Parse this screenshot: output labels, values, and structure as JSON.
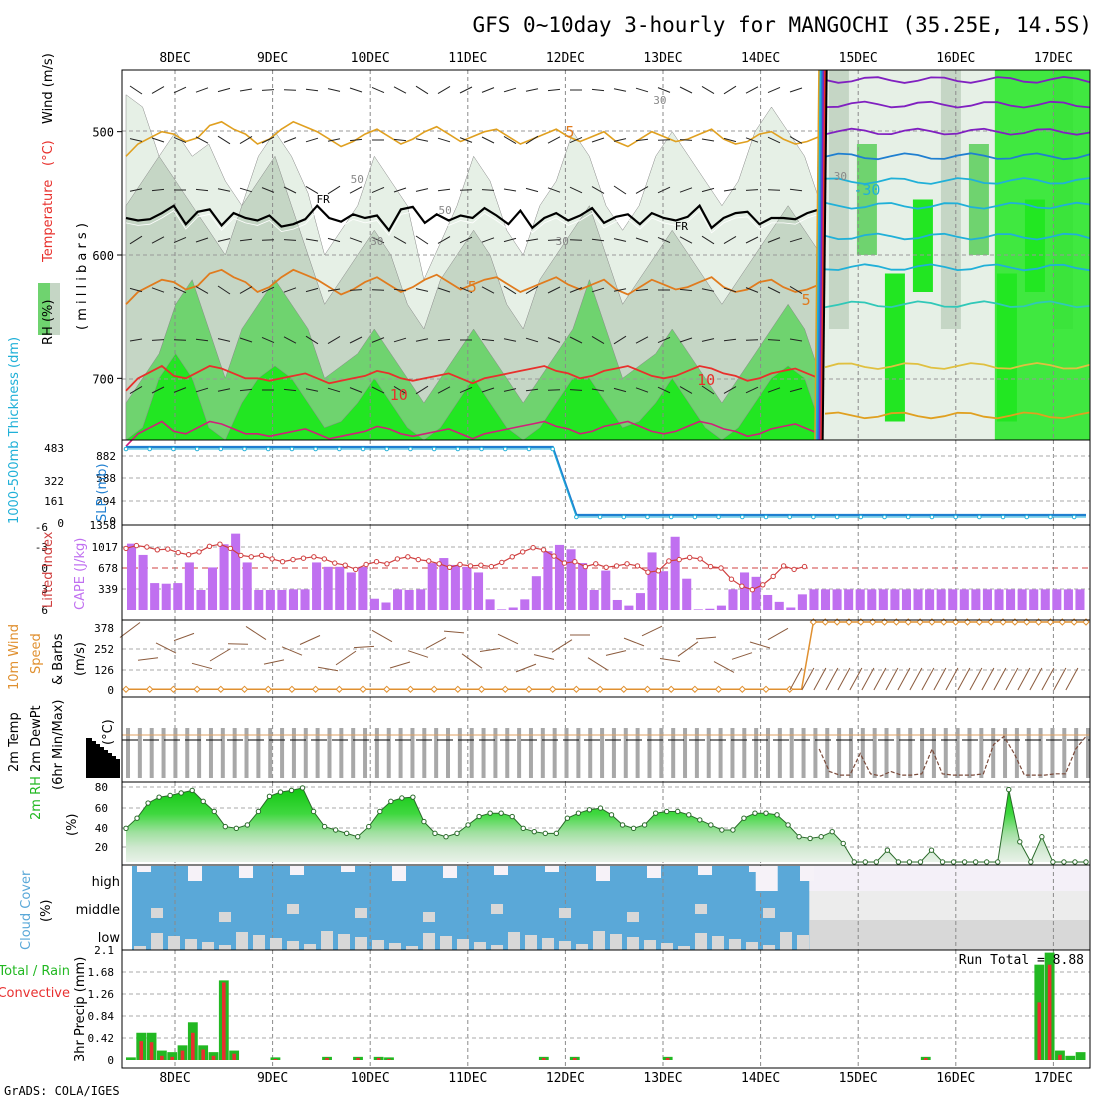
{
  "title": "GFS 0~10day 3-hourly for MANGOCHI (35.25E, 14.5S)",
  "credit": "GrADS: COLA/IGES",
  "dates": [
    "8DEC",
    "9DEC",
    "10DEC",
    "11DEC",
    "12DEC",
    "13DEC",
    "14DEC",
    "15DEC",
    "16DEC",
    "17DEC"
  ],
  "colors": {
    "rh_light": "#e6f0e6",
    "rh_mid": "#c5d6c5",
    "rh_green": "#6fd36f",
    "rh_bright": "#22e622",
    "freezing": "#000000",
    "temp_orange": "#e07b1e",
    "temp_gold": "#e0a020",
    "temp_red": "#e8302c",
    "temp_magenta": "#d0207a",
    "blue": "#1f7fd0",
    "cyan": "#20b0d8",
    "purple": "#8020c0",
    "cape": "#c070f0",
    "li": "#d04040",
    "wind_marker": "#e09030",
    "cloud_blue": "#5aa8d8",
    "cloud_gray": "#d8d8d8",
    "rain_green": "#22b822",
    "rain_red": "#e83030"
  },
  "chart_data": [
    {
      "name": "upper-air cross section",
      "type": "heatmap",
      "ylabel_parts": [
        "RH (%)",
        "Temperature",
        "(°C)",
        "Wind (m/s)",
        "(millibars)"
      ],
      "ylabel_spaced": "( m i l l i b a r s )",
      "yticks": [
        500,
        600,
        700
      ],
      "ylim": [
        450,
        750
      ],
      "contour_labels": [
        "FR",
        "FR",
        "5",
        "5",
        "5",
        "10",
        "10",
        "-30",
        "30",
        "30",
        "50",
        "50",
        "30",
        "30"
      ],
      "freezing_level_mb": [
        570,
        572,
        571,
        566,
        560,
        575,
        565,
        563,
        576,
        566,
        570,
        572,
        568,
        577,
        575,
        571,
        560,
        570,
        573,
        567,
        570,
        568,
        580,
        563,
        561,
        574,
        567,
        572,
        568,
        570,
        562,
        568,
        575,
        564,
        578,
        570,
        566,
        572,
        568,
        562,
        574,
        569,
        567,
        575,
        566,
        570,
        572,
        569,
        560,
        578,
        570,
        566,
        565,
        575,
        570,
        570,
        571,
        566,
        563
      ],
      "t5_level_mb": [
        640,
        630,
        625,
        620,
        622,
        628,
        625,
        615,
        612,
        618,
        622,
        630,
        626,
        618,
        612,
        616,
        620,
        626,
        632,
        628,
        622,
        618,
        624,
        630,
        626,
        620,
        616,
        622,
        628,
        624,
        620,
        618,
        624,
        630,
        626,
        622,
        618,
        624,
        628,
        624,
        620,
        628,
        632,
        626,
        620,
        624,
        628,
        626,
        622,
        618,
        626,
        630,
        628,
        622,
        620,
        626,
        630,
        628,
        624
      ],
      "t10_level_mb": [
        710,
        700,
        695,
        690,
        698,
        700,
        695,
        690,
        692,
        696,
        700,
        700,
        702,
        700,
        698,
        696,
        700,
        704,
        702,
        700,
        698,
        694,
        696,
        700,
        702,
        700,
        698,
        696,
        700,
        704,
        700,
        698,
        696,
        694,
        692,
        690,
        694,
        696,
        700,
        698,
        694,
        692,
        690,
        694,
        698,
        700,
        698,
        694,
        690,
        692,
        696,
        698,
        702,
        700,
        696,
        694,
        692,
        696,
        700
      ],
      "rh_bands": [
        {
          "level": "light",
          "tops": [
            470,
            480,
            520,
            500,
            520,
            510,
            540,
            560,
            520,
            500,
            520,
            550,
            600,
            580,
            560,
            520,
            540,
            560,
            620,
            590,
            560,
            520,
            540,
            580,
            600,
            560,
            540,
            500,
            520,
            560,
            580,
            560,
            520,
            500,
            520,
            540,
            560,
            540,
            500,
            480,
            500,
            520,
            560,
            520,
            500,
            480,
            460,
            480,
            500,
            520,
            500,
            480,
            500,
            520,
            540,
            500,
            480,
            470,
            470
          ]
        },
        {
          "level": "mid",
          "tops": [
            560,
            540,
            520,
            540,
            560,
            580,
            600,
            560,
            540,
            520,
            560,
            600,
            640,
            620,
            600,
            580,
            600,
            640,
            660,
            620,
            600,
            580,
            600,
            640,
            660,
            620,
            600,
            580,
            560,
            600,
            640,
            620,
            600,
            580,
            600,
            620,
            640,
            620,
            600,
            580,
            560,
            580,
            600,
            620,
            600,
            580,
            560,
            580,
            600,
            620,
            600,
            580,
            560,
            580,
            600,
            580,
            560,
            560,
            560
          ]
        },
        {
          "level": "green",
          "tops": [
            720,
            700,
            680,
            640,
            620,
            660,
            700,
            660,
            640,
            620,
            640,
            660,
            700,
            690,
            680,
            660,
            680,
            700,
            720,
            700,
            680,
            660,
            680,
            700,
            720,
            700,
            680,
            660,
            620,
            660,
            700,
            690,
            680,
            660,
            680,
            700,
            720,
            700,
            680,
            660,
            640,
            660,
            700,
            680,
            660,
            640,
            620,
            640,
            680,
            700,
            690,
            660,
            640,
            680,
            700,
            680,
            660,
            640,
            640
          ]
        },
        {
          "level": "bright",
          "tops": [
            750,
            740,
            700,
            680,
            700,
            740,
            750,
            720,
            700,
            690,
            700,
            720,
            740,
            735,
            720,
            700,
            720,
            740,
            750,
            740,
            720,
            700,
            720,
            740,
            750,
            740,
            720,
            700,
            700,
            720,
            740,
            735,
            720,
            700,
            720,
            740,
            750,
            740,
            720,
            700,
            690,
            700,
            740,
            720,
            700,
            690,
            680,
            690,
            720,
            740,
            735,
            700,
            690,
            720,
            740,
            720,
            700,
            700,
            700
          ]
        }
      ]
    },
    {
      "name": "thickness and slp",
      "type": "line",
      "ylabel_left": "1000-500mb Thickness (dm)",
      "ylabel_right": "SLP (mb)",
      "yticks_left": [
        "483",
        "322",
        "161",
        "0"
      ],
      "yticks_right": [
        "1358",
        "882",
        "588",
        "294",
        "0"
      ],
      "thickness_before": 882,
      "thickness_after": 0,
      "drop_index": 37
    },
    {
      "name": "cape and lifted index",
      "type": "bar",
      "ylabel_left": "Lifted Index",
      "ylabel_right": "CAPE (J/kg)",
      "yticks_left": [
        "-6",
        "-3",
        "0",
        "3",
        "6"
      ],
      "yticks_right": [
        "1017",
        "678",
        "339"
      ],
      "ylim_cape": [
        0,
        1358
      ],
      "cape": [
        1060,
        880,
        430,
        420,
        430,
        760,
        320,
        680,
        1050,
        1220,
        760,
        320,
        320,
        320,
        330,
        330,
        760,
        690,
        690,
        600,
        690,
        180,
        120,
        330,
        320,
        330,
        750,
        830,
        720,
        690,
        600,
        170,
        10,
        40,
        170,
        540,
        940,
        1040,
        970,
        750,
        320,
        630,
        160,
        70,
        270,
        920,
        620,
        1170,
        500,
        10,
        20,
        70,
        330,
        600,
        530,
        240,
        130,
        40,
        250,
        330,
        330,
        330,
        330,
        330,
        330,
        330,
        330,
        330,
        330,
        330,
        330,
        330,
        330,
        330,
        330,
        330,
        330,
        330,
        330,
        330,
        330,
        330,
        330
      ],
      "lifted_index": [
        -2.8,
        -3.2,
        -3.0,
        -2.6,
        -2.7,
        -2.2,
        -1.9,
        -2.3,
        -3.1,
        -3.4,
        -2.8,
        -1.8,
        -1.6,
        -1.8,
        -1.3,
        -0.9,
        -1.2,
        -1.4,
        -1.6,
        -1.3,
        -0.7,
        -0.4,
        0.2,
        -0.5,
        -0.9,
        -0.6,
        -1.3,
        -1.6,
        -1.2,
        -1.0,
        -0.6,
        -0.1,
        -0.5,
        -0.3,
        -0.4,
        -0.2,
        -0.8,
        -1.6,
        -2.3,
        -2.9,
        -2.6,
        -1.7,
        -0.7,
        -0.9,
        -0.2,
        -0.6,
        -0.1,
        -0.3,
        -0.6,
        -0.3,
        0.6,
        0.4,
        -1.0,
        -1.2,
        -1.5,
        -1.3,
        -0.2,
        0.0,
        1.6,
        2.6,
        3.1,
        2.4,
        1.2,
        -0.3,
        0.2,
        -0.2
      ]
    },
    {
      "name": "10m wind speed",
      "type": "line",
      "ylabel": "10m Wind Speed & Barbs (m/s)",
      "ylabel_parts": [
        "10m Wind",
        "Speed",
        "& Barbs",
        "(m/s)"
      ],
      "yticks": [
        "378",
        "252",
        "126",
        "0"
      ],
      "ylim": [
        0,
        378
      ],
      "speed_before": 4,
      "speed_after": 378,
      "rise_index": 58
    },
    {
      "name": "2m temperature and dewpoint",
      "type": "line",
      "ylabel_parts": [
        "2m Temp",
        "2m DewPt",
        "(6hr Min/Max)",
        "(°C)"
      ],
      "ylim": [
        -400,
        50
      ],
      "dewpt_after": [
        -20,
        -70,
        -78,
        -78,
        -30,
        -75,
        -80,
        -70,
        -78,
        -78,
        -75,
        -20,
        -75,
        -78,
        -78,
        -78,
        -75,
        -10,
        8,
        -30,
        -78,
        -78,
        -78,
        -75,
        -75,
        -20,
        8
      ]
    },
    {
      "name": "2m relative humidity",
      "type": "area",
      "ylabel": "2m RH",
      "yunit": "(%)",
      "yticks": [
        "80",
        "60",
        "40",
        "20"
      ],
      "ylim": [
        0,
        95
      ],
      "rh": [
        40,
        52,
        70,
        77,
        79,
        82,
        85,
        72,
        60,
        42,
        40,
        44,
        60,
        78,
        83,
        85,
        88,
        60,
        42,
        38,
        34,
        30,
        42,
        60,
        72,
        76,
        77,
        48,
        34,
        30,
        34,
        44,
        54,
        58,
        58,
        54,
        40,
        36,
        34,
        34,
        52,
        58,
        62,
        64,
        56,
        44,
        40,
        44,
        58,
        60,
        60,
        56,
        50,
        44,
        38,
        38,
        52,
        58,
        58,
        56,
        44,
        30,
        28,
        30,
        36,
        22,
        0,
        0,
        0,
        14,
        0,
        0,
        0,
        14,
        0,
        0,
        0,
        0,
        0,
        0,
        86,
        24,
        0,
        30,
        0,
        0,
        0,
        0
      ]
    },
    {
      "name": "cloud cover",
      "type": "heatmap",
      "ylabel": "Cloud Cover",
      "yunit": "(%)",
      "levels": [
        "high",
        "middle",
        "low"
      ]
    },
    {
      "name": "3hr precipitation",
      "type": "bar",
      "ylabel": "3hr Precip (mm)",
      "legend": [
        "Total / Rain",
        "Convective"
      ],
      "annotation": "Run Total =  8.88",
      "yticks": [
        "2.1",
        "1.68",
        "1.26",
        "0.84",
        "0.42",
        "0"
      ],
      "ylim": [
        0,
        2.1
      ],
      "total": [
        0.05,
        0.52,
        0.52,
        0.18,
        0.15,
        0.28,
        0.72,
        0.28,
        0.15,
        1.52,
        0.18,
        0.0,
        0.0,
        0.0,
        0.05,
        0.0,
        0.0,
        0.0,
        0.0,
        0.06,
        0.0,
        0.0,
        0.06,
        0.0,
        0.06,
        0.05,
        0.0,
        0.0,
        0.0,
        0.0,
        0.0,
        0.0,
        0.0,
        0.0,
        0.0,
        0.0,
        0.0,
        0.0,
        0.0,
        0.0,
        0.06,
        0.0,
        0.0,
        0.06,
        0.0,
        0.0,
        0.0,
        0.0,
        0.0,
        0.0,
        0.0,
        0.0,
        0.06,
        0.0,
        0.0,
        0.0,
        0.0,
        0.0,
        0.0,
        0.0,
        0.0,
        0.0,
        0.0,
        0.0,
        0.0,
        0.0,
        0.0,
        0.0,
        0.0,
        0.0,
        0.0,
        0.0,
        0.0,
        0.0,
        0.0,
        0.0,
        0.0,
        0.06,
        0.0,
        0.0,
        0.0,
        0.0,
        0.0,
        0.0,
        0.0,
        0.0,
        0.0,
        0.0,
        1.82,
        2.05,
        0.18,
        0.08,
        0.15
      ],
      "convective": [
        0.0,
        0.36,
        0.34,
        0.08,
        0.06,
        0.18,
        0.52,
        0.2,
        0.08,
        1.48,
        0.12,
        0.0,
        0.0,
        0.0,
        0.02,
        0.0,
        0.0,
        0.0,
        0.0,
        0.04,
        0.0,
        0.0,
        0.04,
        0.0,
        0.04,
        0.02,
        0.0,
        0.0,
        0.0,
        0.0,
        0.0,
        0.0,
        0.0,
        0.0,
        0.0,
        0.0,
        0.0,
        0.0,
        0.0,
        0.0,
        0.04,
        0.0,
        0.0,
        0.04,
        0.0,
        0.0,
        0.0,
        0.0,
        0.0,
        0.0,
        0.0,
        0.0,
        0.04,
        0.0,
        0.0,
        0.0,
        0.0,
        0.0,
        0.0,
        0.0,
        0.0,
        0.0,
        0.0,
        0.0,
        0.0,
        0.0,
        0.0,
        0.0,
        0.0,
        0.0,
        0.0,
        0.0,
        0.0,
        0.0,
        0.0,
        0.0,
        0.0,
        0.04,
        0.0,
        0.0,
        0.0,
        0.0,
        0.0,
        0.0,
        0.0,
        0.0,
        0.0,
        0.0,
        1.1,
        1.82,
        0.1,
        0.0,
        0.0
      ]
    }
  ]
}
